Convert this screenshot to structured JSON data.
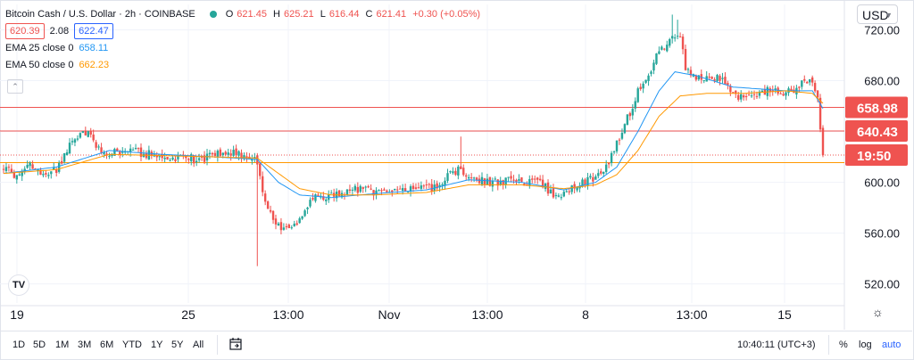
{
  "symbol": {
    "title": "Bitcoin Cash / U.S. Dollar · 2h · COINBASE",
    "status_color": "#26a69a"
  },
  "ohlc": {
    "o_label": "O",
    "o": "621.45",
    "h_label": "H",
    "h": "625.21",
    "l_label": "L",
    "l": "616.44",
    "c_label": "C",
    "c": "621.41",
    "change": "+0.30 (+0.05%)"
  },
  "quote": {
    "bid": "620.39",
    "spread": "2.08",
    "ask": "622.47"
  },
  "indicators": [
    {
      "label": "EMA 25 close 0",
      "value": "658.11",
      "color": "#2196f3"
    },
    {
      "label": "EMA 50 close 0",
      "value": "662.23",
      "color": "#ff9800"
    }
  ],
  "currency": "USD",
  "time_scale_buttons": [
    "1D",
    "5D",
    "1M",
    "3M",
    "6M",
    "YTD",
    "1Y",
    "5Y",
    "All"
  ],
  "clock": "10:40:11 (UTC+3)",
  "scale_options": {
    "percent": "%",
    "log": "log",
    "auto": "auto"
  },
  "icons": {
    "calendar": "calendar-range-icon",
    "settings": "gear-icon",
    "logo": "tradingview-logo"
  },
  "colors": {
    "up": "#26a69a",
    "down": "#ef5350",
    "ema25": "#2196f3",
    "ema50": "#ff9800",
    "hline": "#ef5350"
  },
  "chart_data": {
    "type": "candlestick",
    "ylim": [
      505,
      740
    ],
    "y_ticks": [
      520,
      560,
      600,
      640,
      680,
      720
    ],
    "y_tick_labels": [
      "520.00",
      "560.00",
      "600.00",
      "640.00",
      "680.00",
      "720.00"
    ],
    "x_ticks": [
      "19",
      "25",
      "13:00",
      "Nov",
      "13:00",
      "8",
      "13:00",
      "15"
    ],
    "horizontal_lines": [
      658.98,
      640.43
    ],
    "price_labels": [
      {
        "text": "658.98",
        "value": 658.98,
        "color": "#ef5350"
      },
      {
        "text": "640.43",
        "value": 640.43,
        "color": "#ef5350"
      },
      {
        "text": "19:50",
        "value": 621.41,
        "color": "#ef5350",
        "note": "countdown badge"
      }
    ],
    "last_price": 621.41,
    "horizontal_support": 615.5,
    "series": [
      {
        "name": "BCH/USD",
        "anchors": [
          [
            0,
            612
          ],
          [
            6,
            603
          ],
          [
            10,
            614
          ],
          [
            15,
            606
          ],
          [
            20,
            610
          ],
          [
            24,
            625
          ],
          [
            28,
            637
          ],
          [
            32,
            641
          ],
          [
            36,
            625
          ],
          [
            42,
            623
          ],
          [
            50,
            624
          ],
          [
            56,
            622
          ],
          [
            62,
            618
          ],
          [
            68,
            621
          ],
          [
            74,
            617
          ],
          [
            80,
            621
          ],
          [
            86,
            624
          ],
          [
            92,
            620
          ],
          [
            96,
            617
          ],
          [
            98,
            595
          ],
          [
            100,
            578
          ],
          [
            104,
            566
          ],
          [
            108,
            562
          ],
          [
            112,
            572
          ],
          [
            116,
            585
          ],
          [
            120,
            589
          ],
          [
            125,
            590
          ],
          [
            130,
            592
          ],
          [
            135,
            595
          ],
          [
            140,
            592
          ],
          [
            146,
            594
          ],
          [
            152,
            593
          ],
          [
            158,
            595
          ],
          [
            164,
            596
          ],
          [
            168,
            604
          ],
          [
            172,
            610
          ],
          [
            176,
            604
          ],
          [
            180,
            602
          ],
          [
            186,
            600
          ],
          [
            192,
            602
          ],
          [
            198,
            600
          ],
          [
            204,
            598
          ],
          [
            208,
            590
          ],
          [
            212,
            592
          ],
          [
            216,
            596
          ],
          [
            220,
            600
          ],
          [
            224,
            604
          ],
          [
            228,
            612
          ],
          [
            232,
            630
          ],
          [
            236,
            650
          ],
          [
            240,
            672
          ],
          [
            244,
            686
          ],
          [
            248,
            702
          ],
          [
            252,
            712
          ],
          [
            256,
            716
          ],
          [
            258,
            690
          ],
          [
            260,
            685
          ],
          [
            264,
            682
          ],
          [
            268,
            684
          ],
          [
            272,
            681
          ],
          [
            276,
            668
          ],
          [
            280,
            667
          ],
          [
            284,
            670
          ],
          [
            288,
            671
          ],
          [
            292,
            673
          ],
          [
            296,
            669
          ],
          [
            300,
            675
          ],
          [
            304,
            681
          ],
          [
            306,
            676
          ],
          [
            308,
            666
          ],
          [
            309,
            642
          ],
          [
            310,
            621.41
          ]
        ]
      }
    ],
    "ema": [
      {
        "name": "EMA 25 close 0",
        "anchors": [
          [
            0,
            607
          ],
          [
            20,
            612
          ],
          [
            40,
            625
          ],
          [
            60,
            622
          ],
          [
            80,
            620
          ],
          [
            96,
            618
          ],
          [
            104,
            600
          ],
          [
            112,
            590
          ],
          [
            124,
            588
          ],
          [
            140,
            591
          ],
          [
            160,
            594
          ],
          [
            176,
            602
          ],
          [
            196,
            600
          ],
          [
            212,
            594
          ],
          [
            224,
            600
          ],
          [
            232,
            612
          ],
          [
            240,
            640
          ],
          [
            248,
            672
          ],
          [
            254,
            687
          ],
          [
            262,
            684
          ],
          [
            276,
            675
          ],
          [
            296,
            672
          ],
          [
            306,
            672
          ],
          [
            310,
            658.11
          ]
        ]
      },
      {
        "name": "EMA 50 close 0",
        "anchors": [
          [
            0,
            607
          ],
          [
            20,
            610
          ],
          [
            40,
            622
          ],
          [
            60,
            621
          ],
          [
            80,
            620
          ],
          [
            96,
            619
          ],
          [
            104,
            607
          ],
          [
            112,
            595
          ],
          [
            124,
            590
          ],
          [
            140,
            590
          ],
          [
            160,
            592
          ],
          [
            176,
            598
          ],
          [
            196,
            598
          ],
          [
            212,
            595
          ],
          [
            224,
            598
          ],
          [
            232,
            606
          ],
          [
            240,
            625
          ],
          [
            248,
            652
          ],
          [
            256,
            668
          ],
          [
            266,
            670
          ],
          [
            280,
            670
          ],
          [
            296,
            672
          ],
          [
            306,
            670
          ],
          [
            310,
            662.23
          ]
        ]
      }
    ]
  }
}
